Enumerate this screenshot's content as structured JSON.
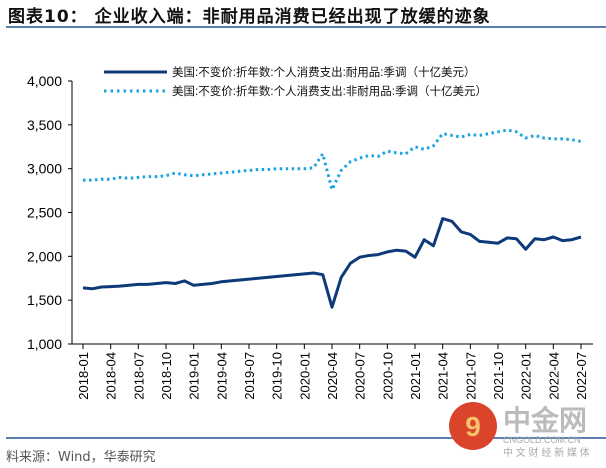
{
  "title": "图表10：  企业收入端：非耐用品消费已经出现了放缓的迹象",
  "source": "料来源：Wind，华泰研究",
  "watermark": {
    "name": "中金网",
    "url": "CNGOLD.COM.CN",
    "slogan": "中 文 财 经 新 媒 体"
  },
  "chart_data": {
    "type": "line",
    "ylim": [
      1000,
      4000
    ],
    "yticks": [
      "1,000",
      "1,500",
      "2,000",
      "2,500",
      "3,000",
      "3,500",
      "4,000"
    ],
    "ytick_values": [
      1000,
      1500,
      2000,
      2500,
      3000,
      3500,
      4000
    ],
    "xticks": [
      "2018-01",
      "2018-04",
      "2018-07",
      "2018-10",
      "2019-01",
      "2019-04",
      "2019-07",
      "2019-10",
      "2020-01",
      "2020-04",
      "2020-07",
      "2020-10",
      "2021-01",
      "2021-04",
      "2021-07",
      "2021-10",
      "2022-01",
      "2022-04",
      "2022-07"
    ],
    "legend_placement": "top",
    "series": [
      {
        "name": "美国:不变价:折年数:个人消费支出:耐用品:季调（十亿美元）",
        "color": "#0f3a7a",
        "style": "solid",
        "values": [
          1640,
          1630,
          1650,
          1655,
          1660,
          1670,
          1680,
          1680,
          1690,
          1700,
          1690,
          1720,
          1670,
          1680,
          1690,
          1710,
          1720,
          1730,
          1740,
          1750,
          1760,
          1770,
          1780,
          1790,
          1800,
          1810,
          1790,
          1420,
          1760,
          1920,
          1990,
          2010,
          2020,
          2050,
          2070,
          2060,
          1990,
          2190,
          2120,
          2430,
          2400,
          2280,
          2250,
          2170,
          2160,
          2150,
          2210,
          2200,
          2080,
          2200,
          2190,
          2220,
          2180,
          2190,
          2220
        ]
      },
      {
        "name": "美国:不变价:折年数:个人消费支出:非耐用品:季调（十亿美元）",
        "color": "#1aa3e0",
        "style": "dotted",
        "values": [
          2870,
          2870,
          2880,
          2880,
          2900,
          2890,
          2900,
          2910,
          2910,
          2920,
          2950,
          2930,
          2920,
          2930,
          2940,
          2950,
          2960,
          2970,
          2980,
          2990,
          2990,
          3000,
          3000,
          3000,
          3000,
          3010,
          3170,
          2760,
          2980,
          3080,
          3120,
          3150,
          3140,
          3200,
          3180,
          3170,
          3250,
          3220,
          3260,
          3400,
          3380,
          3360,
          3390,
          3380,
          3400,
          3420,
          3440,
          3420,
          3350,
          3380,
          3350,
          3340,
          3340,
          3330,
          3310
        ]
      }
    ]
  }
}
